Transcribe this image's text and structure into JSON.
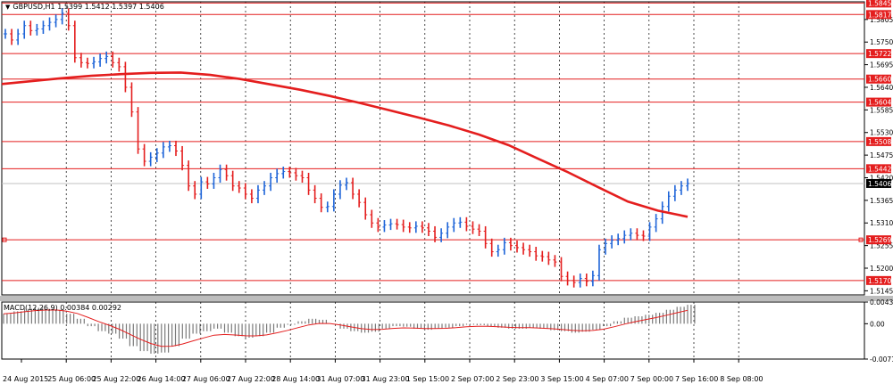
{
  "chart_data": {
    "type": "line",
    "symbol_title": "GBPUSD,H1  1.5399 1.5412 1.5397 1.5406",
    "main_price_axis": {
      "range": [
        1.5135,
        1.5848
      ],
      "ticks": [
        "1.5805",
        "1.5750",
        "1.5695",
        "1.5640",
        "1.5585",
        "1.5530",
        "1.5475",
        "1.5420",
        "1.5365",
        "1.5310",
        "1.5255",
        "1.5200",
        "1.5145"
      ]
    },
    "current_price": {
      "label": "1.5406",
      "value": 1.5406
    },
    "horizontal_levels": [
      {
        "label": "1.5845",
        "value": 1.5845
      },
      {
        "label": "1.5817",
        "value": 1.5817
      },
      {
        "label": "1.5722",
        "value": 1.5722
      },
      {
        "label": "1.5660",
        "value": 1.566
      },
      {
        "label": "1.5604",
        "value": 1.5604
      },
      {
        "label": "1.5508",
        "value": 1.5508
      },
      {
        "label": "1.5442",
        "value": 1.5442
      },
      {
        "label": "1.5269",
        "value": 1.5269
      },
      {
        "label": "1.5170",
        "value": 1.517
      }
    ],
    "x_axis": {
      "labels": [
        "24 Aug 2015",
        "25 Aug 06:00",
        "25 Aug 22:00",
        "26 Aug 14:00",
        "27 Aug 06:00",
        "27 Aug 22:00",
        "28 Aug 14:00",
        "31 Aug 07:00",
        "31 Aug 23:00",
        "1 Sep 15:00",
        "2 Sep 07:00",
        "2 Sep 23:00",
        "3 Sep 15:00",
        "4 Sep 07:00",
        "7 Sep 00:00",
        "7 Sep 16:00",
        "8 Sep 08:00"
      ]
    },
    "price_series": {
      "name": "GBPUSD H1",
      "values": [
        1.577,
        1.5755,
        1.577,
        1.579,
        1.5778,
        1.5782,
        1.579,
        1.5798,
        1.5805,
        1.582,
        1.579,
        1.5712,
        1.57,
        1.5698,
        1.5702,
        1.571,
        1.5715,
        1.57,
        1.569,
        1.564,
        1.558,
        1.549,
        1.546,
        1.547,
        1.548,
        1.5495,
        1.5498,
        1.5485,
        1.545,
        1.54,
        1.538,
        1.541,
        1.5405,
        1.542,
        1.544,
        1.5425,
        1.54,
        1.5395,
        1.538,
        1.537,
        1.539,
        1.54,
        1.542,
        1.543,
        1.5435,
        1.5432,
        1.5425,
        1.542,
        1.539,
        1.537,
        1.5348,
        1.535,
        1.538,
        1.5402,
        1.5408,
        1.538,
        1.536,
        1.533,
        1.531,
        1.53,
        1.5305,
        1.5308,
        1.5306,
        1.53,
        1.5298,
        1.5302,
        1.5298,
        1.529,
        1.5275,
        1.5285,
        1.53,
        1.531,
        1.5312,
        1.5302,
        1.5295,
        1.529,
        1.526,
        1.524,
        1.5245,
        1.5262,
        1.5255,
        1.525,
        1.5245,
        1.524,
        1.523,
        1.5228,
        1.522,
        1.5215,
        1.518,
        1.517,
        1.5165,
        1.5175,
        1.5168,
        1.5182,
        1.5245,
        1.526,
        1.5268,
        1.5272,
        1.528,
        1.5285,
        1.528,
        1.5278,
        1.53,
        1.532,
        1.535,
        1.5375,
        1.539,
        1.54,
        1.5406
      ]
    },
    "moving_average": {
      "color": "#e41e1e",
      "values": [
        1.5648,
        1.5655,
        1.5662,
        1.5668,
        1.5672,
        1.5675,
        1.5676,
        1.567,
        1.566,
        1.5647,
        1.5634,
        1.5619,
        1.5602,
        1.5584,
        1.5566,
        1.5547,
        1.5525,
        1.5499,
        1.5466,
        1.5433,
        1.5397,
        1.5362,
        1.534,
        1.5325
      ]
    },
    "macd": {
      "title": "MACD(12,26,9) 0.00384 0.00292",
      "axis_ticks": [
        "0.00436",
        "0.00",
        "-0.0071"
      ],
      "range": [
        -0.0071,
        0.00436
      ],
      "histogram": [
        0.002,
        0.0025,
        0.003,
        0.0032,
        0.003,
        0.0028,
        0.002,
        0.001,
        -0.0005,
        -0.0015,
        -0.002,
        -0.003,
        -0.0045,
        -0.0055,
        -0.006,
        -0.0058,
        -0.0045,
        -0.003,
        -0.002,
        -0.0015,
        -0.001,
        -0.0018,
        -0.0025,
        -0.0028,
        -0.0025,
        -0.0018,
        -0.0008,
        -0.0002,
        0.0005,
        0.001,
        0.0008,
        0.0,
        -0.001,
        -0.0015,
        -0.0018,
        -0.0016,
        -0.001,
        -0.0005,
        -0.0006,
        -0.001,
        -0.0012,
        -0.001,
        -0.0008,
        -0.0005,
        -0.0002,
        -0.0003,
        -0.0005,
        -0.0008,
        -0.001,
        -0.001,
        -0.0008,
        -0.001,
        -0.0013,
        -0.0015,
        -0.0018,
        -0.0016,
        -0.0012,
        -0.0005,
        0.0005,
        0.0012,
        0.0015,
        0.0018,
        0.0022,
        0.0028,
        0.0034,
        0.0038
      ],
      "signal_color": "#e41e1e"
    }
  }
}
